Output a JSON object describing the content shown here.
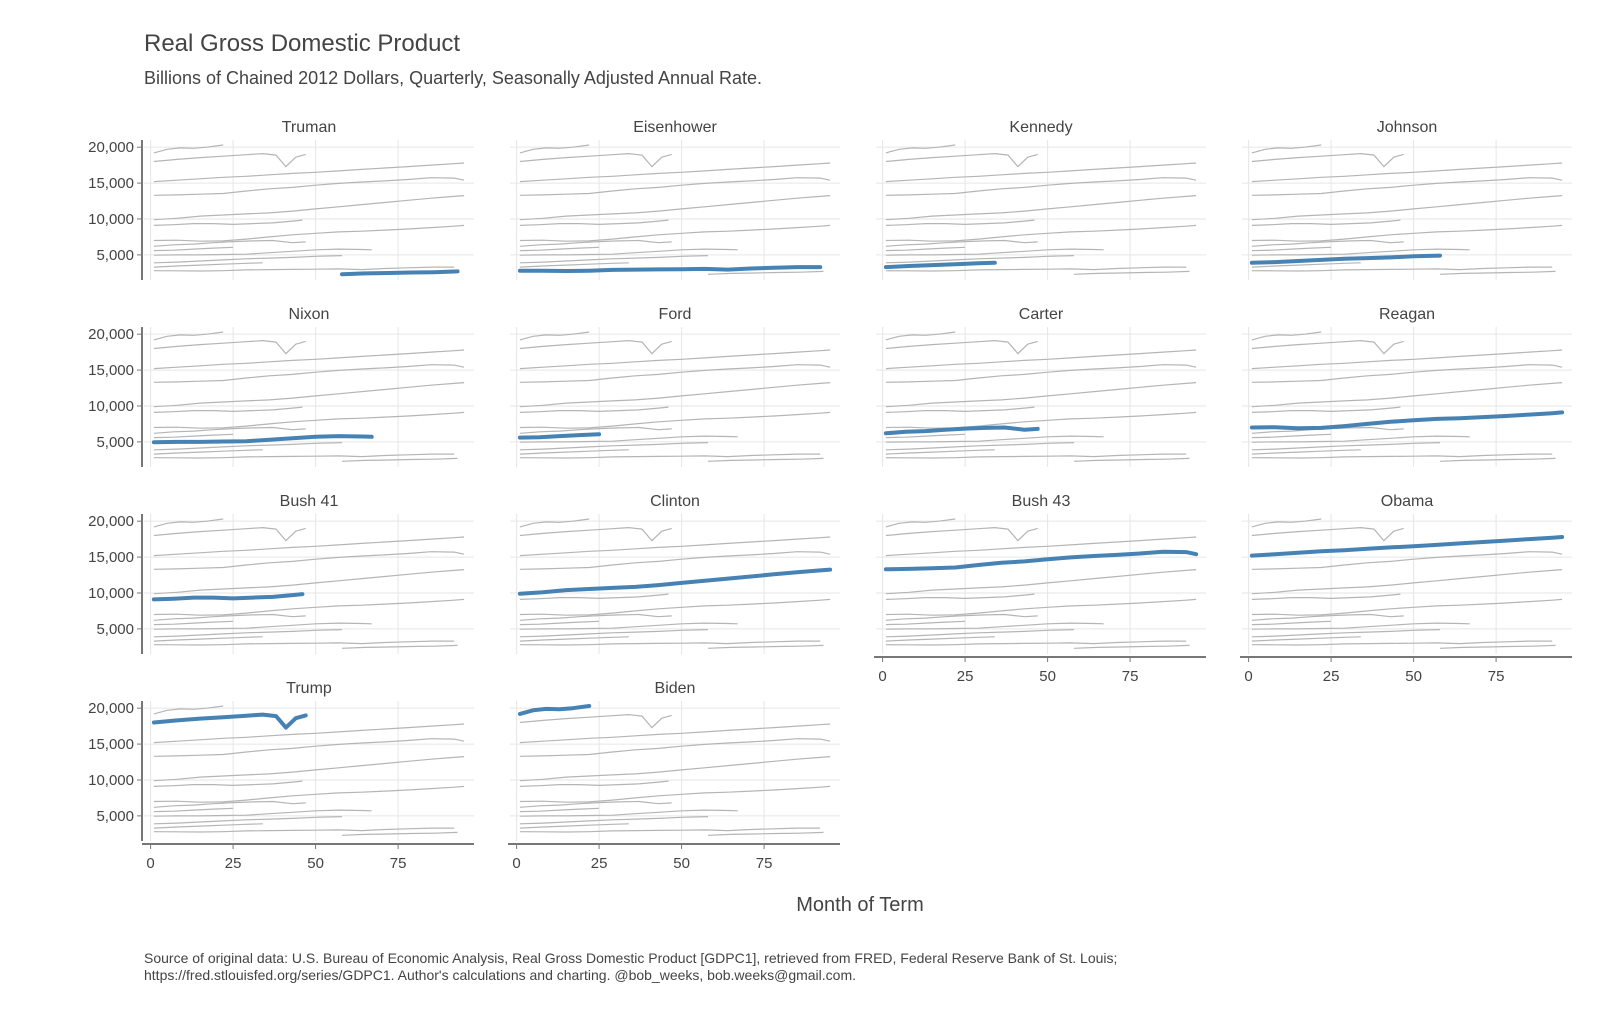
{
  "chart_data": {
    "type": "line",
    "title": "Real Gross Domestic Product",
    "subtitle": "Billions of Chained 2012 Dollars, Quarterly, Seasonally Adjusted Annual Rate.",
    "xlabel": "Month of Term",
    "ylabel": "",
    "caption_lines": [
      "Source of original data: U.S. Bureau of Economic Analysis, Real Gross Domestic Product [GDPC1], retrieved from FRED, Federal Reserve Bank of St. Louis;",
      "https://fred.stlouisfed.org/series/GDPC1. Author's calculations and charting. @bob_weeks, bob.weeks@gmail.com."
    ],
    "xlim": [
      -2,
      98
    ],
    "ylim": [
      1500,
      21000
    ],
    "x_ticks": [
      0,
      25,
      50,
      75
    ],
    "y_ticks": [
      5000,
      10000,
      15000,
      20000
    ],
    "y_tick_labels": [
      "5,000",
      "10,000",
      "15,000",
      "20,000"
    ],
    "grid": true,
    "highlight_color": "#4682b4",
    "context_color": "#b5b5b5",
    "grid_color": "#e6e6e6",
    "axis_color": "#777777",
    "series": [
      {
        "name": "Truman",
        "x": [
          58,
          65,
          72,
          79,
          86,
          93
        ],
        "y": [
          2300,
          2420,
          2480,
          2550,
          2580,
          2700
        ]
      },
      {
        "name": "Eisenhower",
        "x": [
          1,
          8,
          15,
          22,
          29,
          36,
          43,
          50,
          57,
          64,
          71,
          78,
          85,
          92
        ],
        "y": [
          2800,
          2780,
          2750,
          2800,
          2900,
          2950,
          2980,
          3000,
          3050,
          2950,
          3100,
          3200,
          3300,
          3300
        ]
      },
      {
        "name": "Kennedy",
        "x": [
          1,
          8,
          15,
          22,
          29,
          34
        ],
        "y": [
          3300,
          3450,
          3580,
          3700,
          3820,
          3900
        ]
      },
      {
        "name": "Johnson",
        "x": [
          1,
          8,
          15,
          22,
          29,
          36,
          43,
          50,
          58
        ],
        "y": [
          3900,
          4000,
          4150,
          4300,
          4450,
          4550,
          4650,
          4800,
          4900
        ]
      },
      {
        "name": "Nixon",
        "x": [
          1,
          8,
          15,
          22,
          29,
          36,
          43,
          50,
          57,
          64,
          67
        ],
        "y": [
          4950,
          5000,
          5000,
          5050,
          5100,
          5300,
          5500,
          5700,
          5800,
          5750,
          5700
        ]
      },
      {
        "name": "Ford",
        "x": [
          1,
          7,
          13,
          19,
          25
        ],
        "y": [
          5600,
          5650,
          5800,
          5950,
          6050
        ]
      },
      {
        "name": "Carter",
        "x": [
          1,
          7,
          13,
          19,
          25,
          31,
          37,
          43,
          47
        ],
        "y": [
          6200,
          6400,
          6500,
          6700,
          6850,
          6950,
          7000,
          6700,
          6800
        ]
      },
      {
        "name": "Reagan",
        "x": [
          1,
          8,
          15,
          22,
          29,
          36,
          43,
          50,
          57,
          64,
          71,
          78,
          85,
          92,
          95
        ],
        "y": [
          7000,
          7050,
          6900,
          6950,
          7200,
          7500,
          7800,
          8000,
          8200,
          8300,
          8450,
          8600,
          8800,
          9000,
          9100
        ]
      },
      {
        "name": "Bush 41",
        "x": [
          1,
          7,
          13,
          19,
          25,
          31,
          37,
          43,
          46
        ],
        "y": [
          9100,
          9200,
          9350,
          9350,
          9250,
          9350,
          9450,
          9700,
          9850
        ]
      },
      {
        "name": "Clinton",
        "x": [
          1,
          8,
          15,
          22,
          29,
          36,
          43,
          50,
          57,
          64,
          71,
          78,
          85,
          92,
          95
        ],
        "y": [
          9900,
          10100,
          10400,
          10550,
          10700,
          10850,
          11100,
          11400,
          11700,
          12000,
          12300,
          12600,
          12900,
          13150,
          13250
        ]
      },
      {
        "name": "Bush 43",
        "x": [
          1,
          8,
          15,
          22,
          29,
          36,
          43,
          50,
          57,
          64,
          71,
          78,
          85,
          92,
          95
        ],
        "y": [
          13300,
          13350,
          13450,
          13550,
          13900,
          14200,
          14400,
          14700,
          14950,
          15150,
          15300,
          15500,
          15750,
          15700,
          15400
        ]
      },
      {
        "name": "Obama",
        "x": [
          1,
          8,
          15,
          22,
          29,
          36,
          43,
          50,
          57,
          64,
          71,
          78,
          85,
          92,
          95
        ],
        "y": [
          15200,
          15400,
          15600,
          15800,
          15950,
          16150,
          16350,
          16500,
          16700,
          16900,
          17100,
          17300,
          17500,
          17700,
          17800
        ]
      },
      {
        "name": "Trump",
        "x": [
          1,
          8,
          15,
          22,
          29,
          34,
          38,
          41,
          44,
          47
        ],
        "y": [
          18000,
          18300,
          18550,
          18750,
          18950,
          19100,
          18900,
          17300,
          18600,
          19000
        ]
      },
      {
        "name": "Biden",
        "x": [
          1,
          5,
          9,
          13,
          17,
          22
        ],
        "y": [
          19200,
          19700,
          19900,
          19850,
          20000,
          20300
        ]
      }
    ]
  }
}
